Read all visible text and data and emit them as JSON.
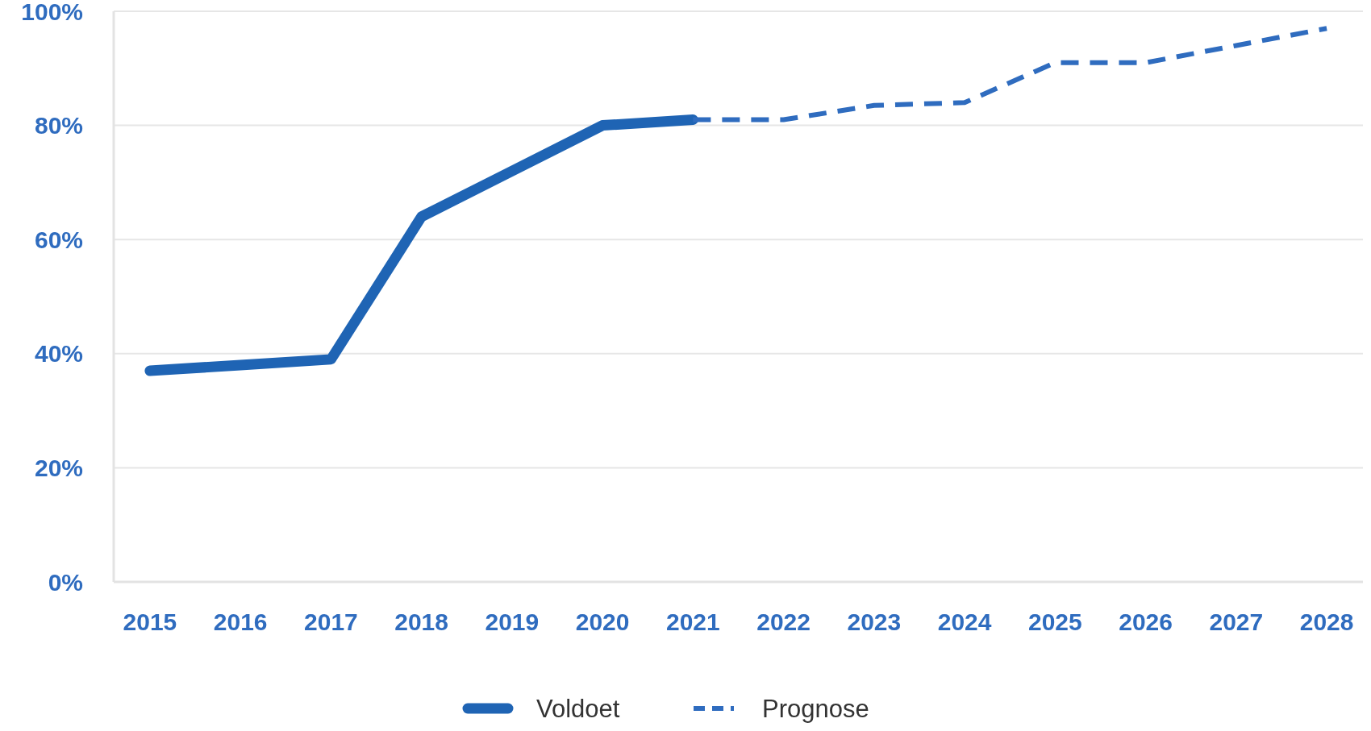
{
  "chart_data": {
    "type": "line",
    "categories": [
      "2015",
      "2016",
      "2017",
      "2018",
      "2019",
      "2020",
      "2021",
      "2022",
      "2023",
      "2024",
      "2025",
      "2026",
      "2027",
      "2028"
    ],
    "series": [
      {
        "name": "Voldoet",
        "color": "#1f64b4",
        "line_style": "solid",
        "values": [
          37,
          38,
          39,
          64,
          72,
          80,
          81,
          null,
          null,
          null,
          null,
          null,
          null,
          null
        ]
      },
      {
        "name": "Prognose",
        "color": "#2f6cbf",
        "line_style": "dashed",
        "values": [
          null,
          null,
          null,
          null,
          null,
          null,
          81,
          81,
          83.5,
          84,
          91,
          91,
          94,
          97
        ]
      }
    ],
    "ylim": [
      0,
      100
    ],
    "yticks": [
      {
        "value": 0,
        "label": "0%"
      },
      {
        "value": 20,
        "label": "20%"
      },
      {
        "value": 40,
        "label": "40%"
      },
      {
        "value": 60,
        "label": "60%"
      },
      {
        "value": 80,
        "label": "80%"
      },
      {
        "value": 100,
        "label": "100%"
      }
    ],
    "grid": "y",
    "legend": "bottom"
  }
}
